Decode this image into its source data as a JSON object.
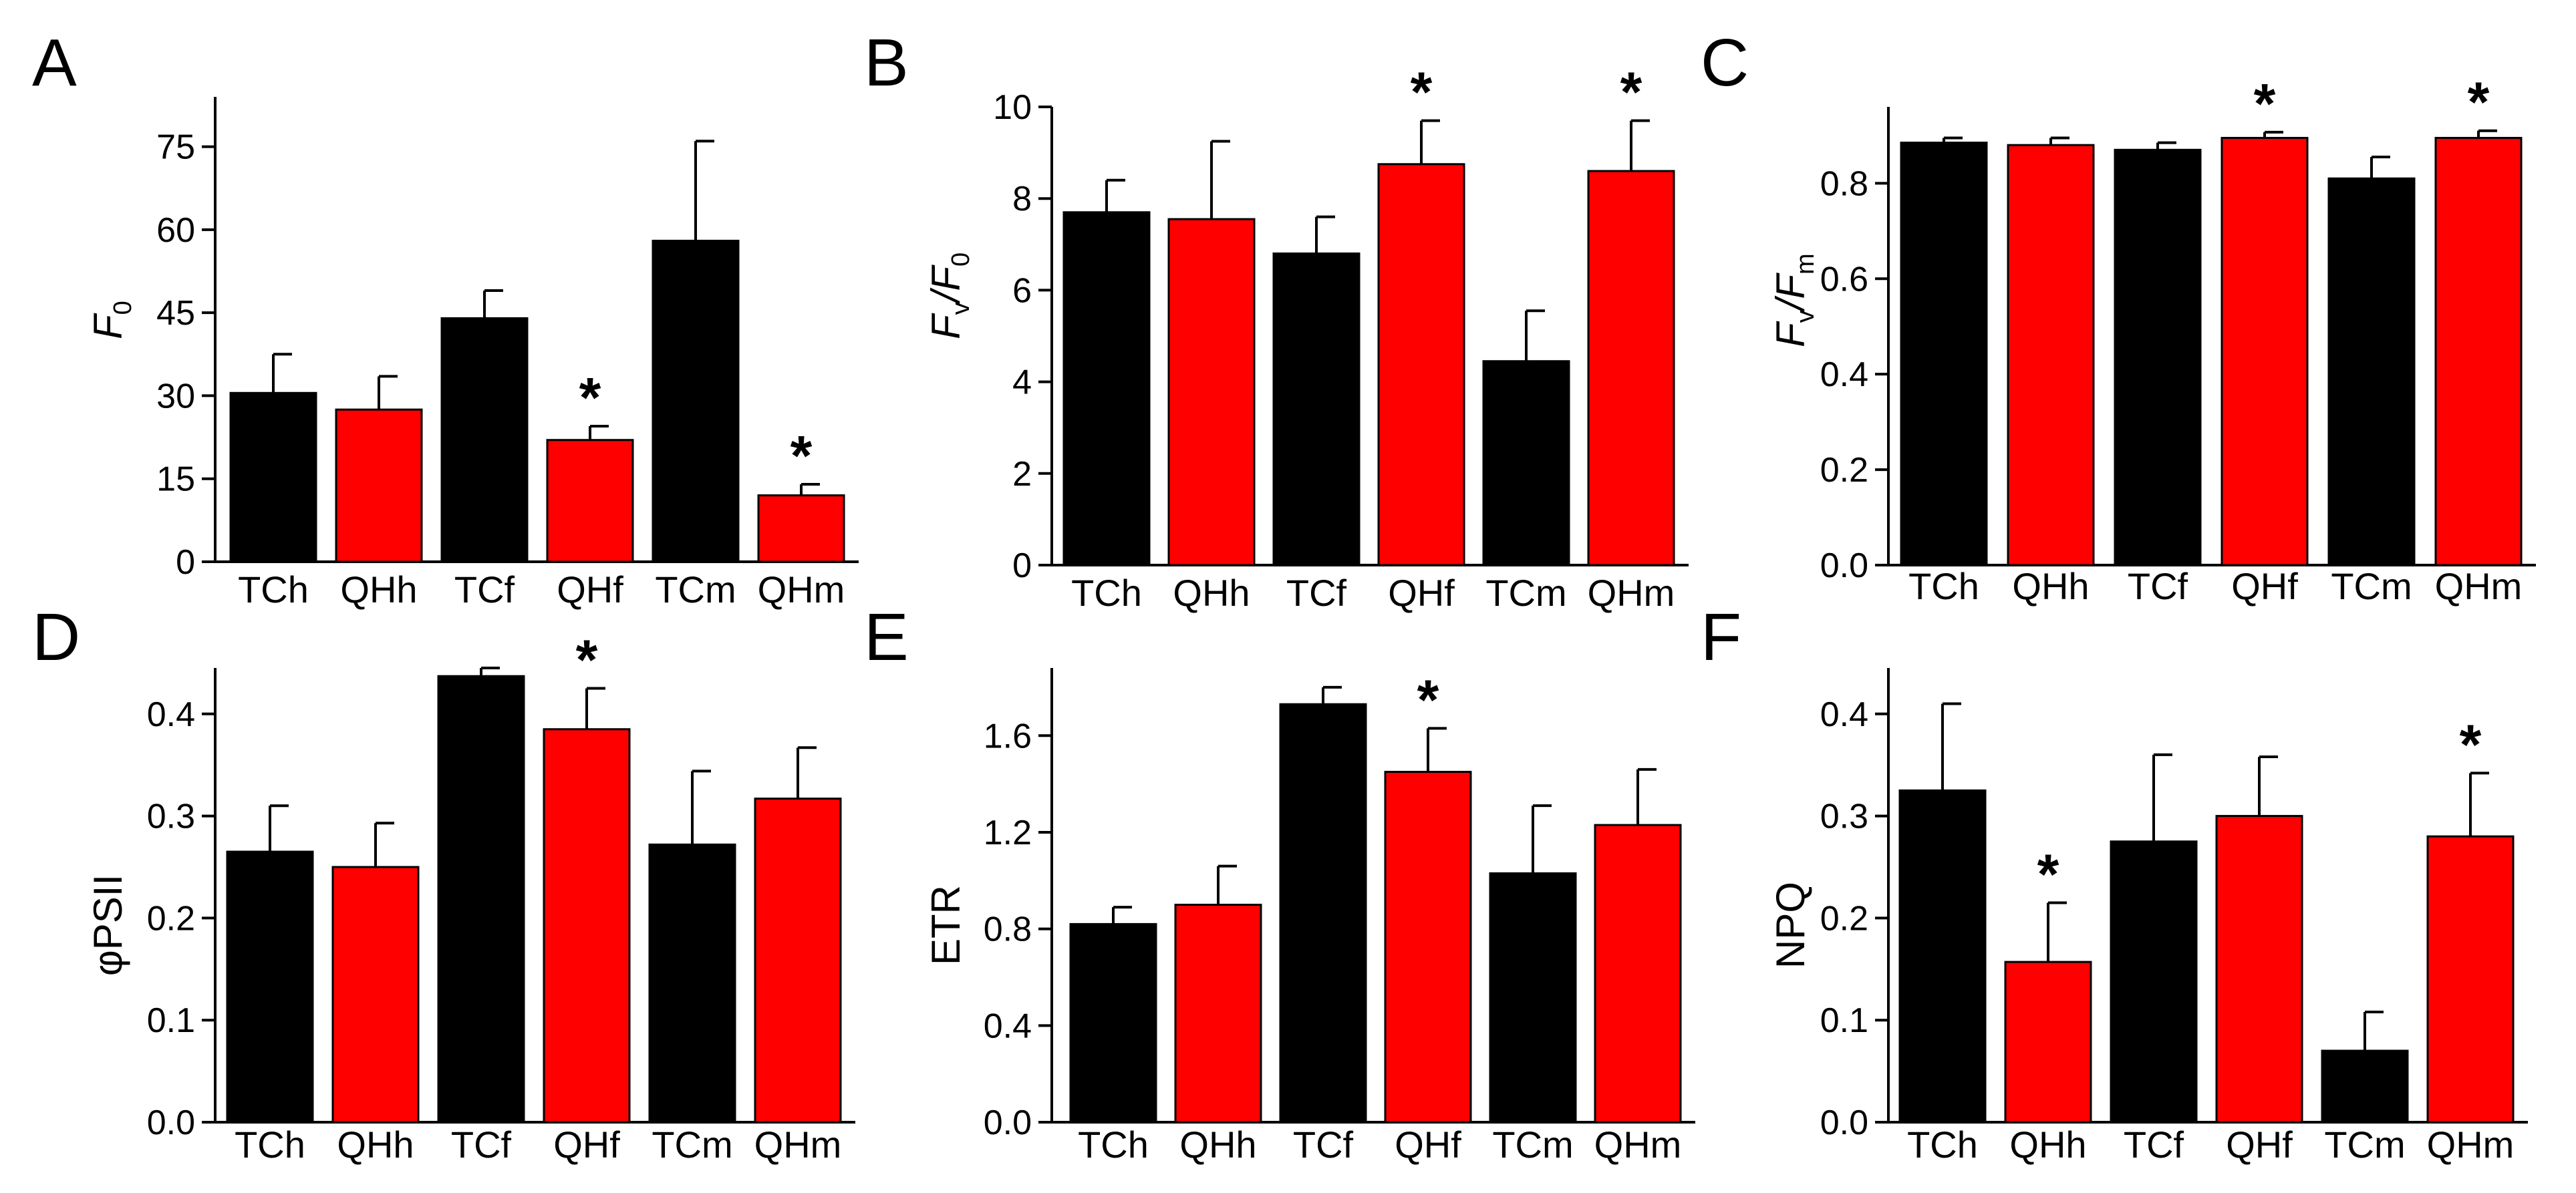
{
  "figure": {
    "colors": {
      "control": "#000000",
      "treatment": "#ff0000"
    }
  },
  "chart_data": [
    {
      "type": "bar",
      "panel": "A",
      "ylabel": {
        "main": "F",
        "sub": "0"
      },
      "categories": [
        "TCh",
        "QHh",
        "TCf",
        "QHf",
        "TCm",
        "QHm"
      ],
      "values": [
        30.5,
        27.5,
        44,
        22,
        58,
        12
      ],
      "errors": [
        7,
        6,
        5,
        2.5,
        18,
        2
      ],
      "significant": [
        false,
        false,
        false,
        true,
        false,
        true
      ],
      "star_symbol": "*",
      "yticks": [
        0,
        15,
        30,
        45,
        60,
        75
      ],
      "ytick_labels": [
        "0",
        "15",
        "30",
        "45",
        "60",
        "75"
      ],
      "ylim": [
        0,
        84
      ]
    },
    {
      "type": "bar",
      "panel": "B",
      "ylabel": {
        "main": "F",
        "sub": "v",
        "main2": "/F",
        "sub2": "0"
      },
      "categories": [
        "TCh",
        "QHh",
        "TCf",
        "QHf",
        "TCm",
        "QHm"
      ],
      "values": [
        7.7,
        7.55,
        6.8,
        8.75,
        4.45,
        8.6
      ],
      "errors": [
        0.7,
        1.7,
        0.8,
        0.95,
        1.1,
        1.1
      ],
      "significant": [
        false,
        false,
        false,
        true,
        false,
        true
      ],
      "star_symbol": "*",
      "yticks": [
        0,
        2,
        4,
        6,
        8,
        10
      ],
      "ytick_labels": [
        "0",
        "2",
        "4",
        "6",
        "8",
        "10"
      ],
      "ylim": [
        0,
        10
      ]
    },
    {
      "type": "bar",
      "panel": "C",
      "ylabel": {
        "main": "F",
        "sub": "v",
        "main2": "/F",
        "sub2": "m"
      },
      "categories": [
        "TCh",
        "QHh",
        "TCf",
        "QHf",
        "TCm",
        "QHm"
      ],
      "values": [
        0.885,
        0.88,
        0.87,
        0.895,
        0.81,
        0.895
      ],
      "errors": [
        0.01,
        0.015,
        0.015,
        0.012,
        0.045,
        0.015
      ],
      "significant": [
        false,
        false,
        false,
        true,
        false,
        true
      ],
      "star_symbol": "*",
      "yticks": [
        0,
        0.2,
        0.4,
        0.6,
        0.8
      ],
      "ytick_labels": [
        "0.0",
        "0.2",
        "0.4",
        "0.6",
        "0.8"
      ],
      "ylim": [
        0,
        0.96
      ]
    },
    {
      "type": "bar",
      "panel": "D",
      "ylabel": {
        "main": "φPSII"
      },
      "categories": [
        "TCh",
        "QHh",
        "TCf",
        "QHf",
        "TCm",
        "QHm"
      ],
      "values": [
        0.265,
        0.25,
        0.437,
        0.385,
        0.272,
        0.317
      ],
      "errors": [
        0.045,
        0.043,
        0.008,
        0.04,
        0.072,
        0.05
      ],
      "significant": [
        false,
        false,
        false,
        true,
        false,
        false
      ],
      "star_symbol": "*",
      "yticks": [
        0,
        0.1,
        0.2,
        0.3,
        0.4
      ],
      "ytick_labels": [
        "0.0",
        "0.1",
        "0.2",
        "0.3",
        "0.4"
      ],
      "ylim": [
        0,
        0.445
      ]
    },
    {
      "type": "bar",
      "panel": "E",
      "ylabel": {
        "main": "ETR"
      },
      "categories": [
        "TCh",
        "QHh",
        "TCf",
        "QHf",
        "TCm",
        "QHm"
      ],
      "values": [
        0.82,
        0.9,
        1.73,
        1.45,
        1.03,
        1.23
      ],
      "errors": [
        0.07,
        0.16,
        0.07,
        0.18,
        0.28,
        0.23
      ],
      "significant": [
        false,
        false,
        false,
        true,
        false,
        false
      ],
      "star_symbol": "*",
      "yticks": [
        0,
        0.4,
        0.8,
        1.2,
        1.6
      ],
      "ytick_labels": [
        "0.0",
        "0.4",
        "0.8",
        "1.2",
        "1.6"
      ],
      "ylim": [
        0,
        1.88
      ]
    },
    {
      "type": "bar",
      "panel": "F",
      "ylabel": {
        "main": "NPQ"
      },
      "categories": [
        "TCh",
        "QHh",
        "TCf",
        "QHf",
        "TCm",
        "QHm"
      ],
      "values": [
        0.325,
        0.157,
        0.275,
        0.3,
        0.07,
        0.28
      ],
      "errors": [
        0.085,
        0.058,
        0.085,
        0.058,
        0.038,
        0.062
      ],
      "significant": [
        false,
        true,
        false,
        false,
        false,
        true
      ],
      "star_symbol": "*",
      "yticks": [
        0,
        0.1,
        0.2,
        0.3,
        0.4
      ],
      "ytick_labels": [
        "0.0",
        "0.1",
        "0.2",
        "0.3",
        "0.4"
      ],
      "ylim": [
        0,
        0.445
      ]
    }
  ]
}
